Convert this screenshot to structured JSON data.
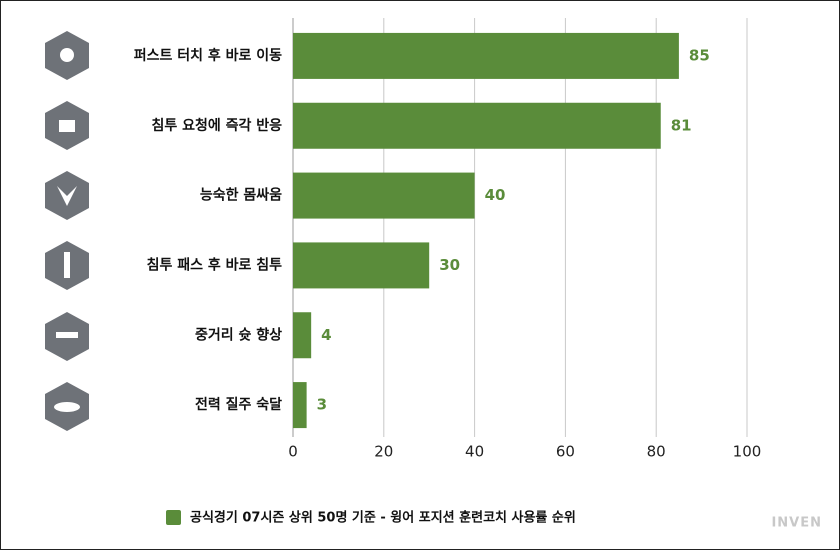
{
  "chart_data": {
    "type": "bar",
    "orientation": "horizontal",
    "categories": [
      "퍼스트 터치 후 바로 이동",
      "침투 요청에 즉각 반응",
      "능숙한 몸싸움",
      "침투 패스 후 바로 침투",
      "중거리 슛 향상",
      "전력 질주 숙달"
    ],
    "series": [
      {
        "name": "공식경기 07시즌 상위 50명 기준 - 윙어 포지션 훈련코치 사용률 순위",
        "color": "#5a8c3a",
        "values": [
          85,
          81,
          40,
          30,
          4,
          3
        ]
      }
    ],
    "xlim": [
      0,
      100
    ],
    "xticks": [
      0,
      20,
      40,
      60,
      80,
      100
    ],
    "grid": true,
    "legend": "bottom",
    "watermark": "INVEN"
  }
}
